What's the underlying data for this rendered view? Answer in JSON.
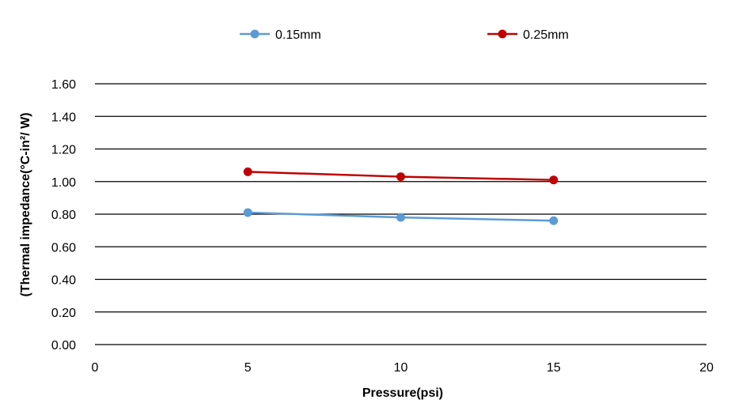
{
  "chart_data": {
    "type": "line",
    "title": "",
    "xlabel": "Pressure(psi)",
    "ylabel": "(Thermal impedance(°C-in²/ W)",
    "xlim": [
      0,
      20
    ],
    "ylim": [
      0,
      1.6
    ],
    "x_ticks": [
      "0",
      "5",
      "10",
      "15",
      "20"
    ],
    "y_ticks": [
      "0.00",
      "0.20",
      "0.40",
      "0.60",
      "0.80",
      "1.00",
      "1.20",
      "1.40",
      "1.60"
    ],
    "grid": "horizontal",
    "legend_position": "top",
    "series": [
      {
        "name": "0.15mm",
        "color": "#5b9bd5",
        "x": [
          5,
          10,
          15
        ],
        "values": [
          0.81,
          0.78,
          0.76
        ]
      },
      {
        "name": "0.25mm",
        "color": "#c00000",
        "x": [
          5,
          10,
          15
        ],
        "values": [
          1.06,
          1.03,
          1.01
        ]
      }
    ]
  }
}
